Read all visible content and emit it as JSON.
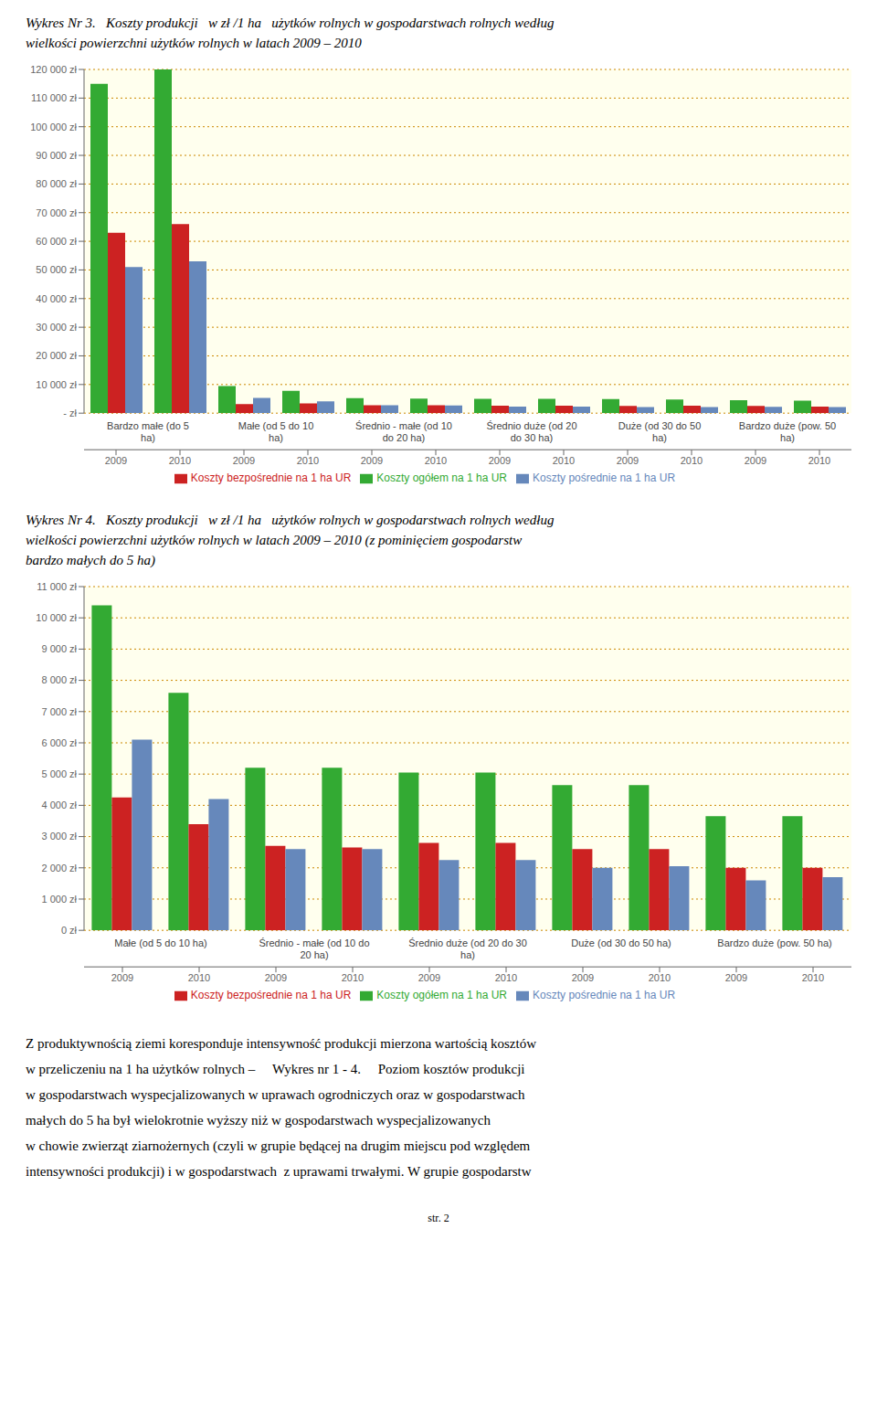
{
  "chart_data": [
    {
      "type": "bar",
      "title": [
        "Wykres Nr 3.   Koszty produkcji   w zł /1 ha   użytków rolnych w gospodarstwach rolnych według",
        "wielkości powierzchni użytków rolnych w latach 2009 – 2010"
      ],
      "categories": [
        "2009",
        "2010",
        "2009",
        "2010",
        "2009",
        "2010",
        "2009",
        "2010",
        "2009",
        "2010",
        "2009",
        "2010"
      ],
      "groups": [
        "Bardzo małe (do 5\nha)",
        "Małe (od 5 do 10\nha)",
        "Średnio - małe (od 10\ndo 20 ha)",
        "Średnio duże (od 20\ndo 30 ha)",
        "Duże (od 30 do 50\nha)",
        "Bardzo duże (pow. 50\nha)"
      ],
      "series": [
        {
          "name": "Koszty ogółem na 1 ha UR",
          "color": "#33AA33",
          "values": [
            115000,
            120000,
            9500,
            7800,
            5200,
            5100,
            5000,
            5000,
            4900,
            4800,
            4500,
            4400
          ]
        },
        {
          "name": "Koszty bezpośrednie na 1 ha UR",
          "color": "#CC2222",
          "values": [
            63000,
            66000,
            3200,
            3400,
            2800,
            2800,
            2600,
            2600,
            2500,
            2600,
            2500,
            2300
          ]
        },
        {
          "name": "Koszty pośrednie na 1 ha UR",
          "color": "#6688BB",
          "values": [
            51000,
            53000,
            5300,
            4100,
            2800,
            2700,
            2300,
            2300,
            2100,
            2100,
            2200,
            2100
          ]
        }
      ],
      "ylim": [
        0,
        120000
      ],
      "yticks": [
        {
          "value": 0,
          "label": "- zł"
        },
        {
          "value": 10000,
          "label": "10 000 zł"
        },
        {
          "value": 20000,
          "label": "20 000 zł"
        },
        {
          "value": 30000,
          "label": "30 000 zł"
        },
        {
          "value": 40000,
          "label": "40 000 zł"
        },
        {
          "value": 50000,
          "label": "50 000 zł"
        },
        {
          "value": 60000,
          "label": "60 000 zł"
        },
        {
          "value": 70000,
          "label": "70 000 zł"
        },
        {
          "value": 80000,
          "label": "80 000 zł"
        },
        {
          "value": 90000,
          "label": "90 000 zł"
        },
        {
          "value": 100000,
          "label": "100 000 zł"
        },
        {
          "value": 110000,
          "label": "110 000 zł"
        },
        {
          "value": 120000,
          "label": "120 000 zł"
        }
      ],
      "grid": true,
      "legend": "bottom"
    },
    {
      "type": "bar",
      "title": [
        "Wykres Nr 4.   Koszty produkcji   w zł /1 ha   użytków rolnych w gospodarstwach rolnych według",
        "wielkości powierzchni użytków rolnych w latach 2009 – 2010 (z pominięciem gospodarstw",
        "bardzo małych do 5 ha)"
      ],
      "categories": [
        "2009",
        "2010",
        "2009",
        "2010",
        "2009",
        "2010",
        "2009",
        "2010",
        "2009",
        "2010"
      ],
      "groups": [
        "Małe (od 5 do 10 ha)",
        "Średnio - małe (od 10 do\n20 ha)",
        "Średnio duże (od 20 do 30\nha)",
        "Duże (od 30 do 50 ha)",
        "Bardzo duże (pow. 50 ha)"
      ],
      "series": [
        {
          "name": "Koszty ogółem na 1 ha UR",
          "color": "#33AA33",
          "values": [
            10400,
            7600,
            5200,
            5200,
            5050,
            5050,
            4650,
            4650,
            3650,
            3650
          ]
        },
        {
          "name": "Koszty bezpośrednie na 1 ha UR",
          "color": "#CC2222",
          "values": [
            4250,
            3400,
            2700,
            2650,
            2800,
            2800,
            2600,
            2600,
            2000,
            2000
          ]
        },
        {
          "name": "Koszty pośrednie na 1 ha UR",
          "color": "#6688BB",
          "values": [
            6100,
            4200,
            2600,
            2600,
            2250,
            2250,
            2000,
            2050,
            1600,
            1700
          ]
        }
      ],
      "ylim": [
        0,
        11000
      ],
      "yticks": [
        {
          "value": 0,
          "label": "0 zł"
        },
        {
          "value": 1000,
          "label": "1 000 zł"
        },
        {
          "value": 2000,
          "label": "2 000 zł"
        },
        {
          "value": 3000,
          "label": "3 000 zł"
        },
        {
          "value": 4000,
          "label": "4 000 zł"
        },
        {
          "value": 5000,
          "label": "5 000 zł"
        },
        {
          "value": 6000,
          "label": "6 000 zł"
        },
        {
          "value": 7000,
          "label": "7 000 zł"
        },
        {
          "value": 8000,
          "label": "8 000 zł"
        },
        {
          "value": 9000,
          "label": "9 000 zł"
        },
        {
          "value": 10000,
          "label": "10 000 zł"
        },
        {
          "value": 11000,
          "label": "11 000 zł"
        }
      ],
      "grid": true,
      "legend": "bottom"
    }
  ],
  "annotations": [
    "Z produktywnością ziemi koresponduje intensywność produkcji mierzona wartością kosztów",
    "w przeliczeniu na 1 ha użytków rolnych –  Wykres nr 1 - 4.  Poziom kosztów produkcji",
    "w gospodarstwach wyspecjalizowanych w uprawach ogrodniczych oraz w gospodarstwach",
    "małych do 5 ha był wielokrotnie wyższy niż w gospodarstwach wyspecjalizowanych",
    "w chowie zwierząt ziarnożernych (czyli w grupie będącej na drugim miejscu pod względem",
    "intensywności produkcji) i w gospodarstwach  z uprawami trwałymi. W grupie gospodarstw"
  ],
  "page_number": "str. 2"
}
